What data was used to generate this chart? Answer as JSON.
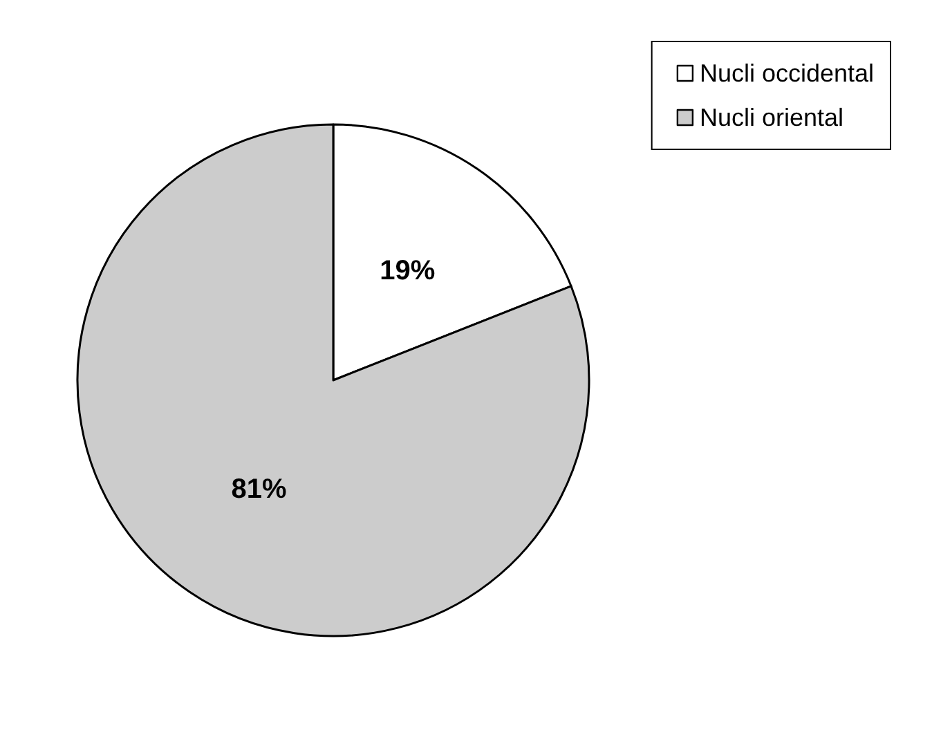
{
  "chart_data": {
    "type": "pie",
    "categories": [
      "Nucli occidental",
      "Nucli oriental"
    ],
    "values": [
      19,
      81
    ],
    "colors": [
      "#ffffff",
      "#cccccc"
    ],
    "value_labels": [
      "19%",
      "81%"
    ],
    "legend": "top right"
  }
}
